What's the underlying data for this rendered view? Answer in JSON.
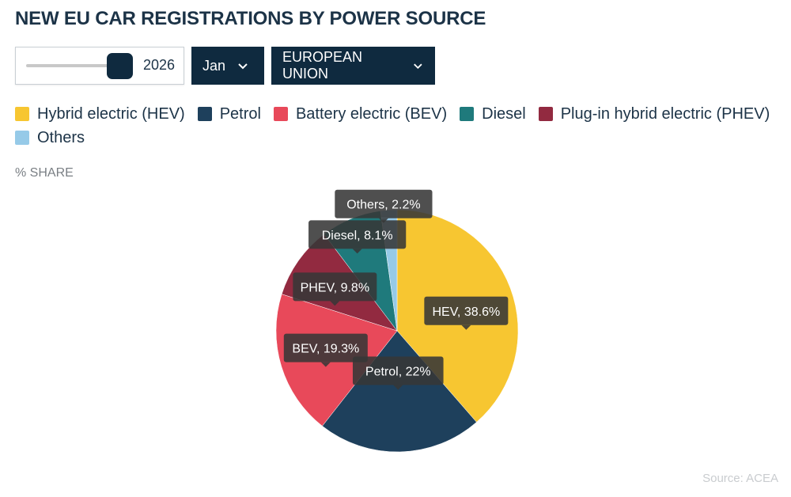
{
  "title": "NEW EU CAR REGISTRATIONS BY POWER SOURCE",
  "controls": {
    "year_value": "2026",
    "year_slider_position": 0.97,
    "month_label": "Jan",
    "region_label": "EUROPEAN UNION"
  },
  "legend": [
    {
      "label": "Hybrid electric (HEV)",
      "color": "#f7c631"
    },
    {
      "label": "Petrol",
      "color": "#1e405c"
    },
    {
      "label": "Battery electric (BEV)",
      "color": "#e8495a"
    },
    {
      "label": "Diesel",
      "color": "#1f7a7c"
    },
    {
      "label": "Plug-in hybrid electric (PHEV)",
      "color": "#922a40"
    },
    {
      "label": "Others",
      "color": "#96cae8"
    }
  ],
  "unit_label": "% SHARE",
  "source": "Source: ACEA",
  "chart_data": {
    "type": "pie",
    "slices": [
      {
        "short": "HEV",
        "value": 38.6,
        "tooltip": "HEV, 38.6%",
        "color": "#f7c631"
      },
      {
        "short": "Petrol",
        "value": 22,
        "tooltip": "Petrol, 22%",
        "color": "#1e405c"
      },
      {
        "short": "BEV",
        "value": 19.3,
        "tooltip": "BEV, 19.3%",
        "color": "#e8495a"
      },
      {
        "short": "PHEV",
        "value": 9.8,
        "tooltip": "PHEV, 9.8%",
        "color": "#922a40"
      },
      {
        "short": "Diesel",
        "value": 8.1,
        "tooltip": "Diesel, 8.1%",
        "color": "#1f7a7c"
      },
      {
        "short": "Others",
        "value": 2.2,
        "tooltip": "Others, 2.2%",
        "color": "#96cae8"
      }
    ]
  }
}
